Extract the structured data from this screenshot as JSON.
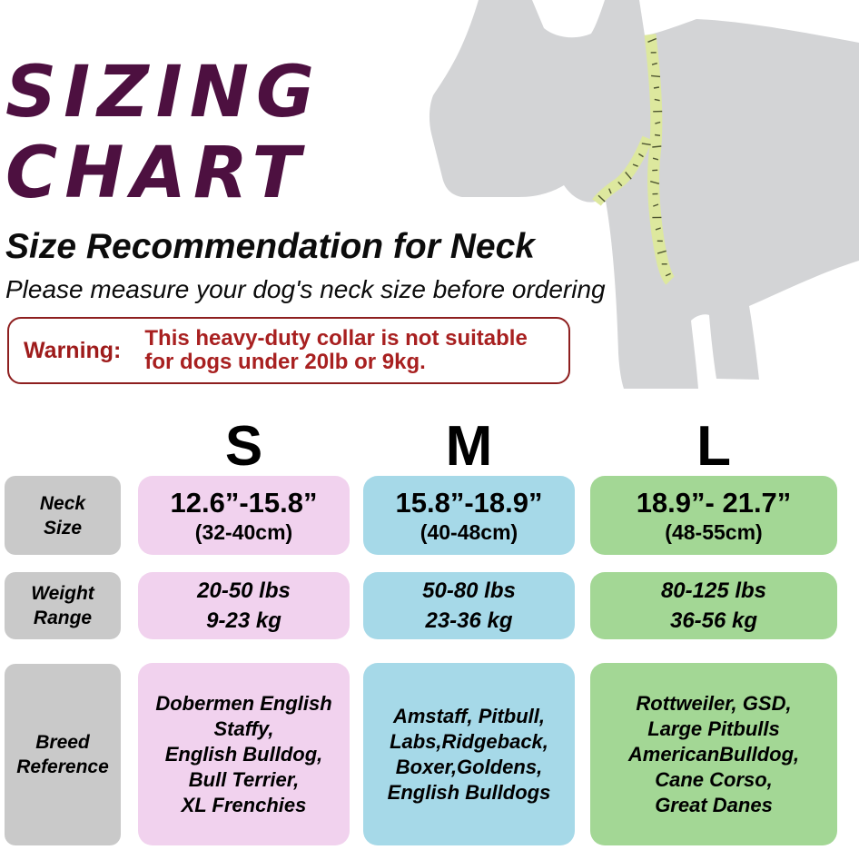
{
  "title": {
    "line1": "SIZING",
    "line2": "CHART"
  },
  "subtitle": "Size Recommendation for Neck",
  "note": "Please measure your dog's neck size before ordering",
  "warning": {
    "label": "Warning:",
    "line1": "This heavy-duty collar is not suitable",
    "line2": "for dogs under 20lb or 9kg."
  },
  "table": {
    "col_headers": [
      "S",
      "M",
      "L"
    ],
    "row_labels": [
      [
        "Neck",
        "Size"
      ],
      [
        "Weight",
        "Range"
      ],
      [
        "Breed",
        "Reference"
      ]
    ],
    "neck": {
      "s": {
        "main": "12.6”-15.8”",
        "sub": "(32-40cm)"
      },
      "m": {
        "main": "15.8”-18.9”",
        "sub": "(40-48cm)"
      },
      "l": {
        "main": "18.9”- 21.7”",
        "sub": "(48-55cm)"
      }
    },
    "weight": {
      "s": {
        "line1": "20-50 lbs",
        "line2": "9-23 kg"
      },
      "m": {
        "line1": "50-80 lbs",
        "line2": "23-36 kg"
      },
      "l": {
        "line1": "80-125 lbs",
        "line2": "36-56 kg"
      }
    },
    "breed": {
      "s": [
        "Dobermen English",
        "Staffy,",
        "English Bulldog,",
        "Bull Terrier,",
        "XL Frenchies"
      ],
      "m": [
        "Amstaff, Pitbull,",
        "Labs,Ridgeback,",
        "Boxer,Goldens,",
        "English Bulldogs"
      ],
      "l": [
        "Rottweiler, GSD,",
        "Large Pitbulls",
        "AmericanBulldog,",
        "Cane Corso,",
        "Great Danes"
      ]
    }
  },
  "colors": {
    "title": "#4d1040",
    "warning_border": "#8e1f1f",
    "warning_label": "#9e1b1b",
    "warning_text": "#a82020",
    "row_label_bg": "#c9c9c9",
    "size_s": "#f1d2ee",
    "size_m": "#a6d9e8",
    "size_l": "#a3d795",
    "dog": "#d3d4d6",
    "tape": "#dde89e",
    "tape_tick": "#4e5530"
  },
  "chart_data": {
    "type": "table",
    "title": "SIZING CHART — Size Recommendation for Neck",
    "note": "Please measure your dog's neck size before ordering",
    "warning": "This heavy-duty collar is not suitable for dogs under 20lb or 9kg.",
    "columns": [
      "",
      "S",
      "M",
      "L"
    ],
    "rows": [
      [
        "Neck Size",
        "12.6”-15.8” (32-40cm)",
        "15.8”-18.9” (40-48cm)",
        "18.9”- 21.7” (48-55cm)"
      ],
      [
        "Weight Range",
        "20-50 lbs / 9-23 kg",
        "50-80 lbs / 23-36 kg",
        "80-125 lbs / 36-56 kg"
      ],
      [
        "Breed Reference",
        "Dobermen English Staffy, English Bulldog, Bull Terrier, XL Frenchies",
        "Amstaff, Pitbull, Labs, Ridgeback, Boxer, Goldens, English Bulldogs",
        "Rottweiler, GSD, Large Pitbulls, AmericanBulldog, Cane Corso, Great Danes"
      ]
    ]
  }
}
